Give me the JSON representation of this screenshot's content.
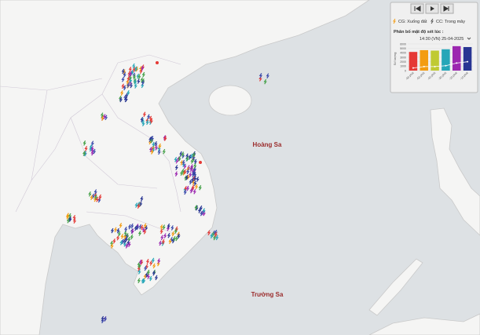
{
  "controls": {
    "legend": [
      "CG: Xuống đất",
      "CC: Trong mây"
    ]
  },
  "panel": {
    "title": "Phân bố mật độ sét lúc :",
    "time": "14:30 (VN) 25-04-2025"
  },
  "chart_data": {
    "type": "bar",
    "ylabel": "Số lượng",
    "categories": [
      "-60 phút",
      "-50 phút",
      "-40 phút",
      "-30 phút",
      "-20 phút",
      "-10 phút"
    ],
    "series": [
      {
        "name": "CG",
        "type": "bar",
        "colors": [
          "#e53935",
          "#f39c12",
          "#c0ca33",
          "#26a6b8",
          "#9c27b0",
          "#283593"
        ],
        "values": [
          4200,
          4600,
          4500,
          4800,
          5500,
          5300
        ]
      },
      {
        "name": "CC",
        "type": "line",
        "color": "#ffffff",
        "values": [
          600,
          900,
          900,
          1100,
          1700,
          2000
        ]
      }
    ],
    "ylim": [
      0,
      6000
    ],
    "yticks": [
      0,
      1000,
      2000,
      3000,
      4000,
      5000,
      6000
    ]
  },
  "labels": [
    "Hoàng Sa",
    "Trường Sa"
  ]
}
